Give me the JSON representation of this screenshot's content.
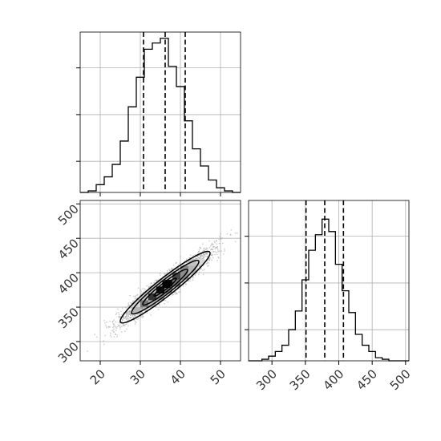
{
  "chart_data": {
    "type": "corner",
    "parameters": [
      {
        "xlim": [
          15,
          55
        ],
        "xticks": [
          20,
          30,
          40,
          50
        ],
        "xtick_labels": [
          "20",
          "30",
          "40",
          "50"
        ],
        "quantiles": [
          30.8,
          36.2,
          41.2
        ],
        "histogram": {
          "type": "bar",
          "bin_width": 2,
          "bin_edges": [
            15,
            17,
            19,
            21,
            23,
            25,
            27,
            29,
            31,
            33,
            35,
            37,
            39,
            41,
            43,
            45,
            47,
            49,
            51,
            53,
            55
          ],
          "counts": [
            0,
            1,
            5,
            10,
            18,
            33,
            55,
            74,
            92,
            96,
            99,
            81,
            68,
            46,
            28,
            17,
            8,
            3,
            1,
            0
          ],
          "ylim": [
            0,
            103
          ]
        }
      },
      {
        "xlim": [
          265,
          505
        ],
        "xticks": [
          300,
          350,
          400,
          450,
          500
        ],
        "xtick_labels": [
          "300",
          "350",
          "400",
          "450",
          "500"
        ],
        "quantiles": [
          351,
          379,
          407
        ],
        "histogram": {
          "type": "bar",
          "bin_width": 10,
          "bin_edges": [
            285,
            295,
            305,
            315,
            325,
            335,
            345,
            355,
            365,
            375,
            385,
            395,
            405,
            415,
            425,
            435,
            445,
            455,
            465,
            475,
            485
          ],
          "counts": [
            1,
            3,
            6,
            10,
            20,
            32,
            52,
            71,
            81,
            91,
            83,
            62,
            45,
            31,
            17,
            10,
            6,
            2,
            1,
            0
          ],
          "ylim": [
            0,
            103
          ]
        }
      }
    ],
    "joint": {
      "type": "scatter",
      "x_param": 0,
      "y_param": 1,
      "xlim": [
        15,
        55
      ],
      "ylim": [
        272,
        505
      ],
      "yticks": [
        300,
        350,
        400,
        450,
        500
      ],
      "ytick_labels": [
        "300",
        "350",
        "400",
        "450",
        "500"
      ],
      "mean": [
        36.2,
        379
      ],
      "std": [
        5.6,
        26
      ],
      "correlation": 0.95,
      "contour_levels_sigma": [
        0.5,
        1.0,
        1.5,
        2.0
      ],
      "density_peak": [
        36.5,
        383
      ]
    },
    "grid": true,
    "colors": {
      "line": "#000000",
      "grid": "#b0b0b0",
      "points": "#999999",
      "frame": "#000000"
    }
  }
}
